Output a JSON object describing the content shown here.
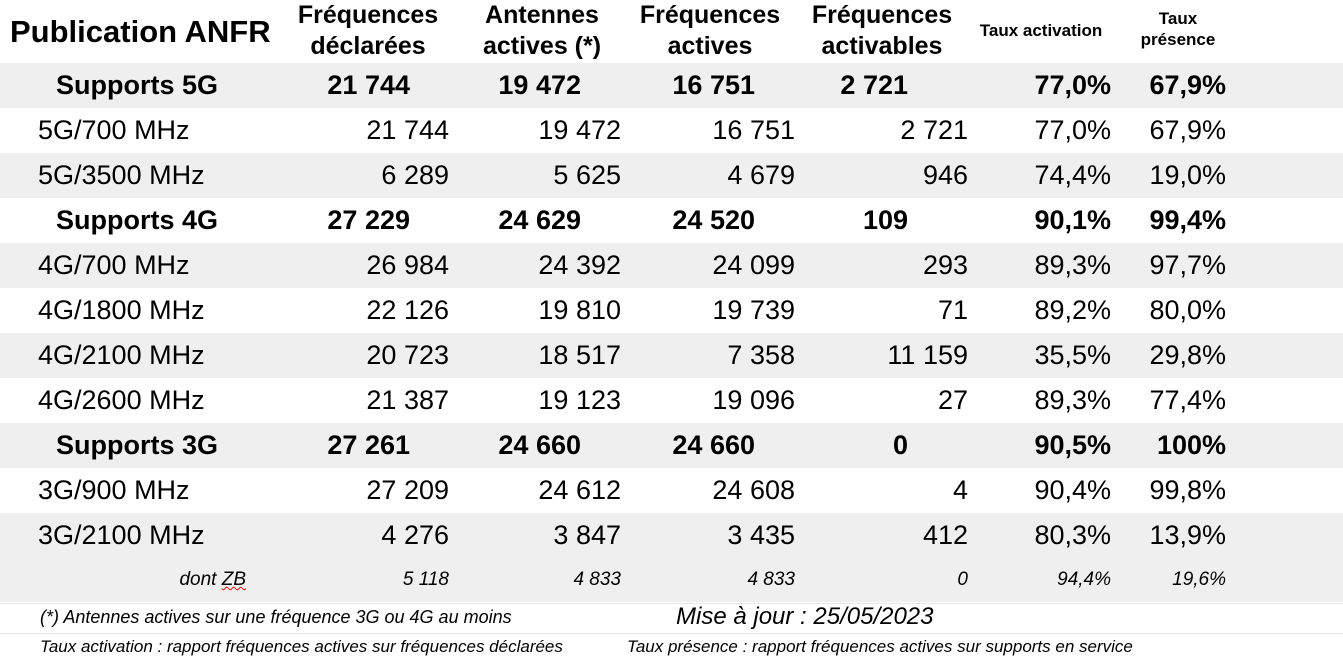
{
  "header": {
    "title": "Publication ANFR",
    "col1": [
      "Fréquences",
      "déclarées"
    ],
    "col2": [
      "Antennes",
      "actives (*)"
    ],
    "col3": [
      "Fréquences",
      "actives"
    ],
    "col4": [
      "Fréquences",
      "activables"
    ],
    "col5": "Taux activation",
    "col6": [
      "Taux",
      "présence"
    ]
  },
  "rows": [
    {
      "label": "Supports 5G",
      "bold": true,
      "v": [
        "21 744",
        "19 472",
        "16 751",
        "2 721",
        "77,0%",
        "67,9%"
      ]
    },
    {
      "label": "5G/700 MHz",
      "v": [
        "21 744",
        "19 472",
        "16 751",
        "2 721",
        "77,0%",
        "67,9%"
      ]
    },
    {
      "label": "5G/3500 MHz",
      "v": [
        "6 289",
        "5 625",
        "4 679",
        "946",
        "74,4%",
        "19,0%"
      ]
    },
    {
      "label": "Supports 4G",
      "bold": true,
      "v": [
        "27 229",
        "24 629",
        "24 520",
        "109",
        "90,1%",
        "99,4%"
      ]
    },
    {
      "label": "4G/700 MHz",
      "v": [
        "26 984",
        "24 392",
        "24 099",
        "293",
        "89,3%",
        "97,7%"
      ]
    },
    {
      "label": "4G/1800 MHz",
      "v": [
        "22 126",
        "19 810",
        "19 739",
        "71",
        "89,2%",
        "80,0%"
      ]
    },
    {
      "label": "4G/2100 MHz",
      "v": [
        "20 723",
        "18 517",
        "7 358",
        "11 159",
        "35,5%",
        "29,8%"
      ]
    },
    {
      "label": "4G/2600 MHz",
      "v": [
        "21 387",
        "19 123",
        "19 096",
        "27",
        "89,3%",
        "77,4%"
      ]
    },
    {
      "label": "Supports 3G",
      "bold": true,
      "v": [
        "27 261",
        "24 660",
        "24 660",
        "0",
        "90,5%",
        "100%"
      ]
    },
    {
      "label": "3G/900 MHz",
      "v": [
        "27 209",
        "24 612",
        "24 608",
        "4",
        "90,4%",
        "99,8%"
      ]
    },
    {
      "label": "3G/2100 MHz",
      "v": [
        "4 276",
        "3 847",
        "3 435",
        "412",
        "80,3%",
        "13,9%"
      ]
    }
  ],
  "zb": {
    "label_prefix": "dont ",
    "label_word": "ZB",
    "v": [
      "5 118",
      "4 833",
      "4 833",
      "0",
      "94,4%",
      "19,6%"
    ]
  },
  "footer": {
    "note_antennes": "(*) Antennes actives sur une fréquence 3G ou 4G au moins",
    "update": "Mise à jour : 25/05/2023",
    "note_activation": "Taux activation : rapport fréquences actives sur fréquences déclarées",
    "note_presence": "Taux présence : rapport fréquences actives sur supports en service"
  }
}
